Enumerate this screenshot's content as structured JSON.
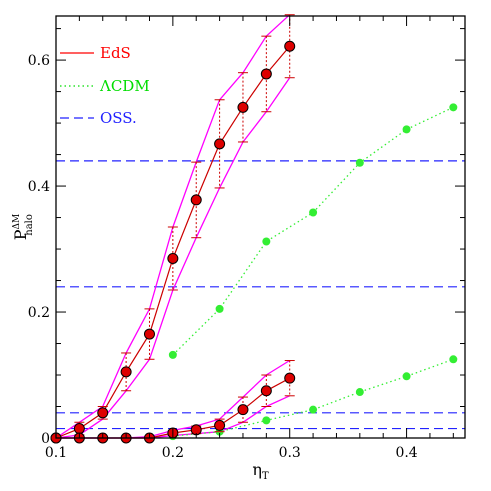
{
  "chart_data": {
    "type": "line",
    "title": "",
    "xlabel": "η",
    "xlabel_sub": "T",
    "ylabel": "P",
    "ylabel_sup": "ΔM",
    "ylabel_sub": "halo",
    "xlim": [
      0.1,
      0.45
    ],
    "ylim": [
      0,
      0.67
    ],
    "x_ticks": [
      0.1,
      0.2,
      0.3,
      0.4
    ],
    "x_tick_labels": [
      "0.1",
      "0.2",
      "0.3",
      "0.4"
    ],
    "y_ticks": [
      0,
      0.2,
      0.4,
      0.6
    ],
    "y_tick_labels": [
      "0",
      "0.2",
      "0.4",
      "0.6"
    ],
    "x_minor_step": 0.02,
    "y_minor_step": 0.05,
    "grid": false,
    "legend_position": "top-left",
    "legend": [
      {
        "label": "EdS",
        "color": "#ff0000",
        "style": "solid"
      },
      {
        "label": "ΛCDM",
        "color": "#00dd00",
        "style": "dotted"
      },
      {
        "label": "OSS.",
        "color": "#2222ff",
        "style": "dashed"
      }
    ],
    "colors": {
      "eds_line": "#cc0000",
      "eds_marker": "#dd0000",
      "envelope": "#ff00ff",
      "lcdm": "#33ee33",
      "oss": "#2222ff",
      "errorbar": "#cc0000"
    },
    "oss_levels": [
      0.44,
      0.24,
      0.04,
      0.015
    ],
    "series": [
      {
        "name": "EdS",
        "group": "upper",
        "x": [
          0.1,
          0.12,
          0.14,
          0.16,
          0.18,
          0.2,
          0.22,
          0.24,
          0.26,
          0.28,
          0.3
        ],
        "y": [
          0.0,
          0.015,
          0.04,
          0.105,
          0.165,
          0.285,
          0.378,
          0.467,
          0.525,
          0.578,
          0.622
        ],
        "err": [
          0.0,
          0.01,
          0.01,
          0.03,
          0.04,
          0.05,
          0.06,
          0.07,
          0.055,
          0.06,
          0.05
        ]
      },
      {
        "name": "EdS",
        "group": "lower",
        "x": [
          0.1,
          0.12,
          0.14,
          0.16,
          0.18,
          0.2,
          0.22,
          0.24,
          0.26,
          0.28,
          0.3
        ],
        "y": [
          0.0,
          0.0,
          0.0,
          0.0,
          0.0,
          0.008,
          0.013,
          0.02,
          0.045,
          0.075,
          0.095
        ],
        "err": [
          0.0,
          0.0,
          0.0,
          0.0,
          0.002,
          0.004,
          0.006,
          0.01,
          0.02,
          0.025,
          0.028
        ]
      },
      {
        "name": "ΛCDM",
        "group": "upper",
        "x": [
          0.2,
          0.24,
          0.28,
          0.32,
          0.36,
          0.4,
          0.44
        ],
        "y": [
          0.132,
          0.205,
          0.312,
          0.358,
          0.437,
          0.49,
          0.525
        ]
      },
      {
        "name": "ΛCDM",
        "group": "lower",
        "x": [
          0.2,
          0.24,
          0.28,
          0.32,
          0.36,
          0.4,
          0.44
        ],
        "y": [
          0.003,
          0.01,
          0.028,
          0.045,
          0.073,
          0.098,
          0.125
        ]
      }
    ]
  }
}
